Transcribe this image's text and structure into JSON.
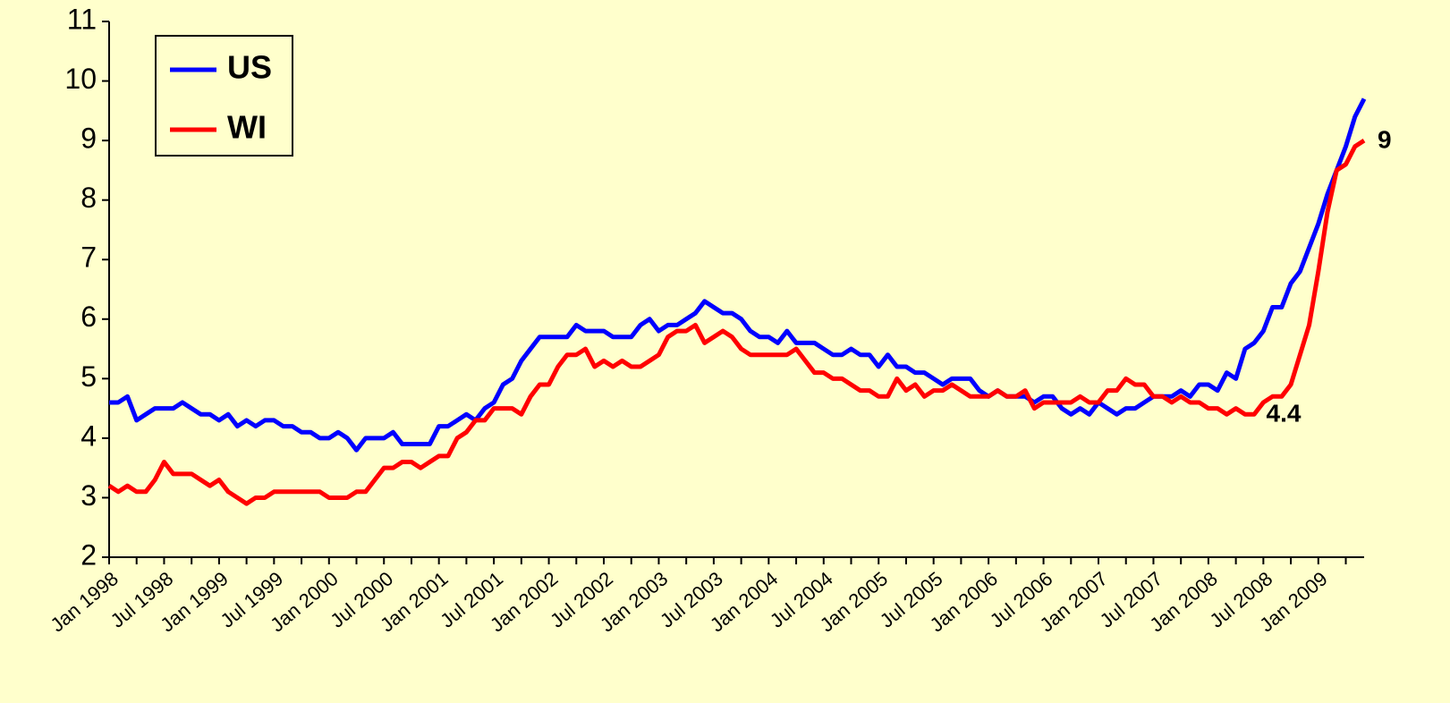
{
  "chart_data": {
    "type": "line",
    "categories": [
      "Jan 1998",
      null,
      null,
      null,
      null,
      null,
      "Jul 1998",
      null,
      null,
      null,
      null,
      null,
      "Jan 1999",
      null,
      null,
      null,
      null,
      null,
      "Jul 1999",
      null,
      null,
      null,
      null,
      null,
      "Jan 2000",
      null,
      null,
      null,
      null,
      null,
      "Jul 2000",
      null,
      null,
      null,
      null,
      null,
      "Jan 2001",
      null,
      null,
      null,
      null,
      null,
      "Jul 2001",
      null,
      null,
      null,
      null,
      null,
      "Jan 2002",
      null,
      null,
      null,
      null,
      null,
      "Jul 2002",
      null,
      null,
      null,
      null,
      null,
      "Jan 2003",
      null,
      null,
      null,
      null,
      null,
      "Jul 2003",
      null,
      null,
      null,
      null,
      null,
      "Jan 2004",
      null,
      null,
      null,
      null,
      null,
      "Jul 2004",
      null,
      null,
      null,
      null,
      null,
      "Jan 2005",
      null,
      null,
      null,
      null,
      null,
      "Jul 2005",
      null,
      null,
      null,
      null,
      null,
      "Jan 2006",
      null,
      null,
      null,
      null,
      null,
      "Jul 2006",
      null,
      null,
      null,
      null,
      null,
      "Jan 2007",
      null,
      null,
      null,
      null,
      null,
      "Jul 2007",
      null,
      null,
      null,
      null,
      null,
      "Jan 2008",
      null,
      null,
      null,
      null,
      null,
      "Jul 2008",
      null,
      null,
      null,
      null,
      null,
      "Jan 2009",
      null,
      null,
      null,
      null,
      null
    ],
    "series": [
      {
        "name": "US",
        "color": "#0000ff",
        "values": [
          4.6,
          4.6,
          4.7,
          4.3,
          4.4,
          4.5,
          4.5,
          4.5,
          4.6,
          4.5,
          4.4,
          4.4,
          4.3,
          4.4,
          4.2,
          4.3,
          4.2,
          4.3,
          4.3,
          4.2,
          4.2,
          4.1,
          4.1,
          4.0,
          4.0,
          4.1,
          4.0,
          3.8,
          4.0,
          4.0,
          4.0,
          4.1,
          3.9,
          3.9,
          3.9,
          3.9,
          4.2,
          4.2,
          4.3,
          4.4,
          4.3,
          4.5,
          4.6,
          4.9,
          5.0,
          5.3,
          5.5,
          5.7,
          5.7,
          5.7,
          5.7,
          5.9,
          5.8,
          5.8,
          5.8,
          5.7,
          5.7,
          5.7,
          5.9,
          6.0,
          5.8,
          5.9,
          5.9,
          6.0,
          6.1,
          6.3,
          6.2,
          6.1,
          6.1,
          6.0,
          5.8,
          5.7,
          5.7,
          5.6,
          5.8,
          5.6,
          5.6,
          5.6,
          5.5,
          5.4,
          5.4,
          5.5,
          5.4,
          5.4,
          5.2,
          5.4,
          5.2,
          5.2,
          5.1,
          5.1,
          5.0,
          4.9,
          5.0,
          5.0,
          5.0,
          4.8,
          4.7,
          4.8,
          4.7,
          4.7,
          4.7,
          4.6,
          4.7,
          4.7,
          4.5,
          4.4,
          4.5,
          4.4,
          4.6,
          4.5,
          4.4,
          4.5,
          4.5,
          4.6,
          4.7,
          4.7,
          4.7,
          4.8,
          4.7,
          4.9,
          4.9,
          4.8,
          5.1,
          5.0,
          5.5,
          5.6,
          5.8,
          6.2,
          6.2,
          6.6,
          6.8,
          7.2,
          7.6,
          8.1,
          8.5,
          8.9,
          9.4,
          9.7
        ]
      },
      {
        "name": "WI",
        "color": "#ff0000",
        "values": [
          3.2,
          3.1,
          3.2,
          3.1,
          3.1,
          3.3,
          3.6,
          3.4,
          3.4,
          3.4,
          3.3,
          3.2,
          3.3,
          3.1,
          3.0,
          2.9,
          3.0,
          3.0,
          3.1,
          3.1,
          3.1,
          3.1,
          3.1,
          3.1,
          3.0,
          3.0,
          3.0,
          3.1,
          3.1,
          3.3,
          3.5,
          3.5,
          3.6,
          3.6,
          3.5,
          3.6,
          3.7,
          3.7,
          4.0,
          4.1,
          4.3,
          4.3,
          4.5,
          4.5,
          4.5,
          4.4,
          4.7,
          4.9,
          4.9,
          5.2,
          5.4,
          5.4,
          5.5,
          5.2,
          5.3,
          5.2,
          5.3,
          5.2,
          5.2,
          5.3,
          5.4,
          5.7,
          5.8,
          5.8,
          5.9,
          5.6,
          5.7,
          5.8,
          5.7,
          5.5,
          5.4,
          5.4,
          5.4,
          5.4,
          5.4,
          5.5,
          5.3,
          5.1,
          5.1,
          5.0,
          5.0,
          4.9,
          4.8,
          4.8,
          4.7,
          4.7,
          5.0,
          4.8,
          4.9,
          4.7,
          4.8,
          4.8,
          4.9,
          4.8,
          4.7,
          4.7,
          4.7,
          4.8,
          4.7,
          4.7,
          4.8,
          4.5,
          4.6,
          4.6,
          4.6,
          4.6,
          4.7,
          4.6,
          4.6,
          4.8,
          4.8,
          5.0,
          4.9,
          4.9,
          4.7,
          4.7,
          4.6,
          4.7,
          4.6,
          4.6,
          4.5,
          4.5,
          4.4,
          4.5,
          4.4,
          4.4,
          4.6,
          4.7,
          4.7,
          4.9,
          5.4,
          5.9,
          6.8,
          7.8,
          8.5,
          8.6,
          8.9,
          9.0
        ]
      }
    ],
    "annotations": [
      "9",
      "4.4"
    ],
    "ylim": [
      2,
      11
    ],
    "yticks": [
      2,
      3,
      4,
      5,
      6,
      7,
      8,
      9,
      10,
      11
    ],
    "legend": "upper left",
    "background": "#ffffcc"
  }
}
